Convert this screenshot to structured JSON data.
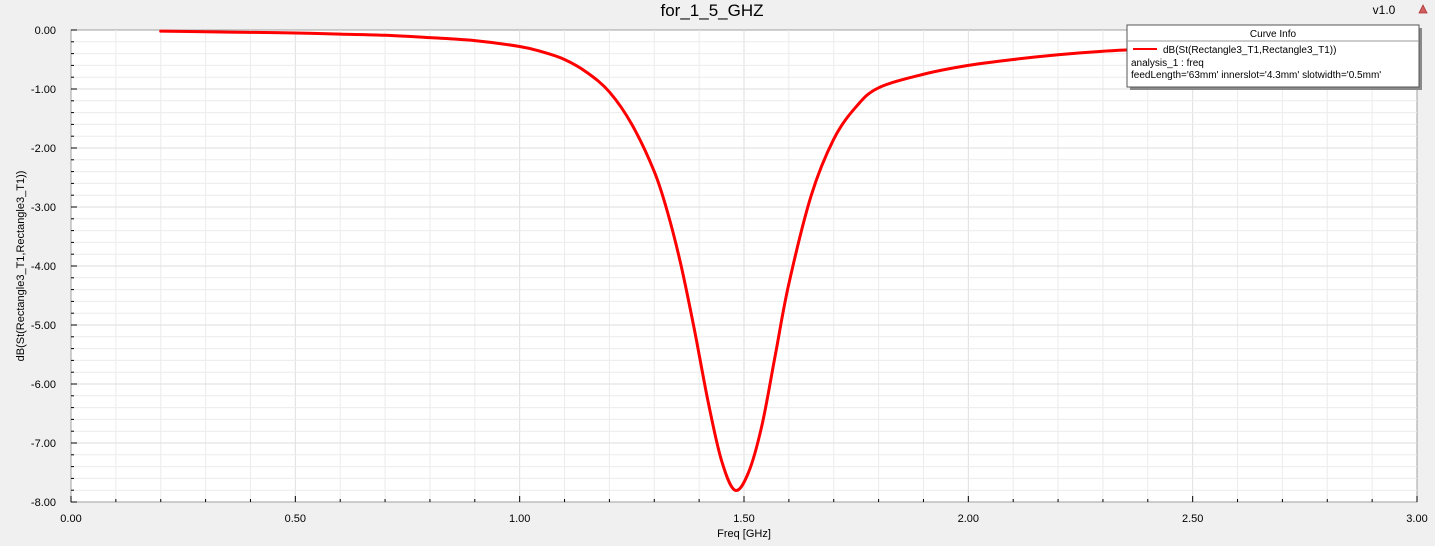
{
  "window": {
    "version": "v1.0",
    "corner_icon": "warning-triangle-icon"
  },
  "chart_data": {
    "type": "line",
    "title": "for_1_5_GHZ",
    "xlabel": "Freq [GHz]",
    "ylabel": "dB(St(Rectangle3_T1,Rectangle3_T1))",
    "xlim": [
      0,
      3
    ],
    "ylim": [
      -8,
      0
    ],
    "x_major_ticks": [
      0,
      0.5,
      1,
      1.5,
      2,
      2.5,
      3
    ],
    "x_tick_labels": [
      "0.00",
      "0.50",
      "1.00",
      "1.50",
      "2.00",
      "2.50",
      "3.00"
    ],
    "y_major_ticks": [
      0,
      -1,
      -2,
      -3,
      -4,
      -5,
      -6,
      -7,
      -8
    ],
    "y_tick_labels": [
      "0.00",
      "-1.00",
      "-2.00",
      "-3.00",
      "-4.00",
      "-5.00",
      "-6.00",
      "-7.00",
      "-8.00"
    ],
    "grid": true,
    "legend_position": "top-right",
    "legend": {
      "title": "Curve Info",
      "entries": [
        {
          "label": "dB(St(Rectangle3_T1,Rectangle3_T1))",
          "line2": "analysis_1 : freq",
          "line3": "feedLength='63mm' innerslot='4.3mm' slotwidth='0.5mm'"
        }
      ]
    },
    "colors": {
      "series": "#ff0000",
      "grid": "#e2e2e2",
      "plot_bg": "#ffffff"
    },
    "series": [
      {
        "name": "dB(St(Rectangle3_T1,Rectangle3_T1))",
        "x": [
          0.2,
          0.3,
          0.4,
          0.5,
          0.6,
          0.7,
          0.8,
          0.9,
          1.0,
          1.05,
          1.1,
          1.15,
          1.2,
          1.25,
          1.3,
          1.33,
          1.36,
          1.39,
          1.42,
          1.45,
          1.48,
          1.51,
          1.54,
          1.57,
          1.6,
          1.65,
          1.7,
          1.75,
          1.8,
          1.9,
          2.0,
          2.1,
          2.2,
          2.3,
          2.4,
          2.5,
          2.6,
          2.7,
          2.8,
          2.9,
          3.0
        ],
        "y": [
          -0.02,
          -0.03,
          -0.04,
          -0.05,
          -0.07,
          -0.09,
          -0.13,
          -0.18,
          -0.28,
          -0.37,
          -0.5,
          -0.72,
          -1.05,
          -1.6,
          -2.4,
          -3.1,
          -4.0,
          -5.1,
          -6.3,
          -7.3,
          -7.8,
          -7.5,
          -6.7,
          -5.5,
          -4.3,
          -2.8,
          -1.85,
          -1.3,
          -0.98,
          -0.75,
          -0.6,
          -0.5,
          -0.42,
          -0.36,
          -0.32,
          -0.28,
          -0.25,
          -0.22,
          -0.2,
          -0.18,
          -0.16
        ]
      }
    ]
  }
}
